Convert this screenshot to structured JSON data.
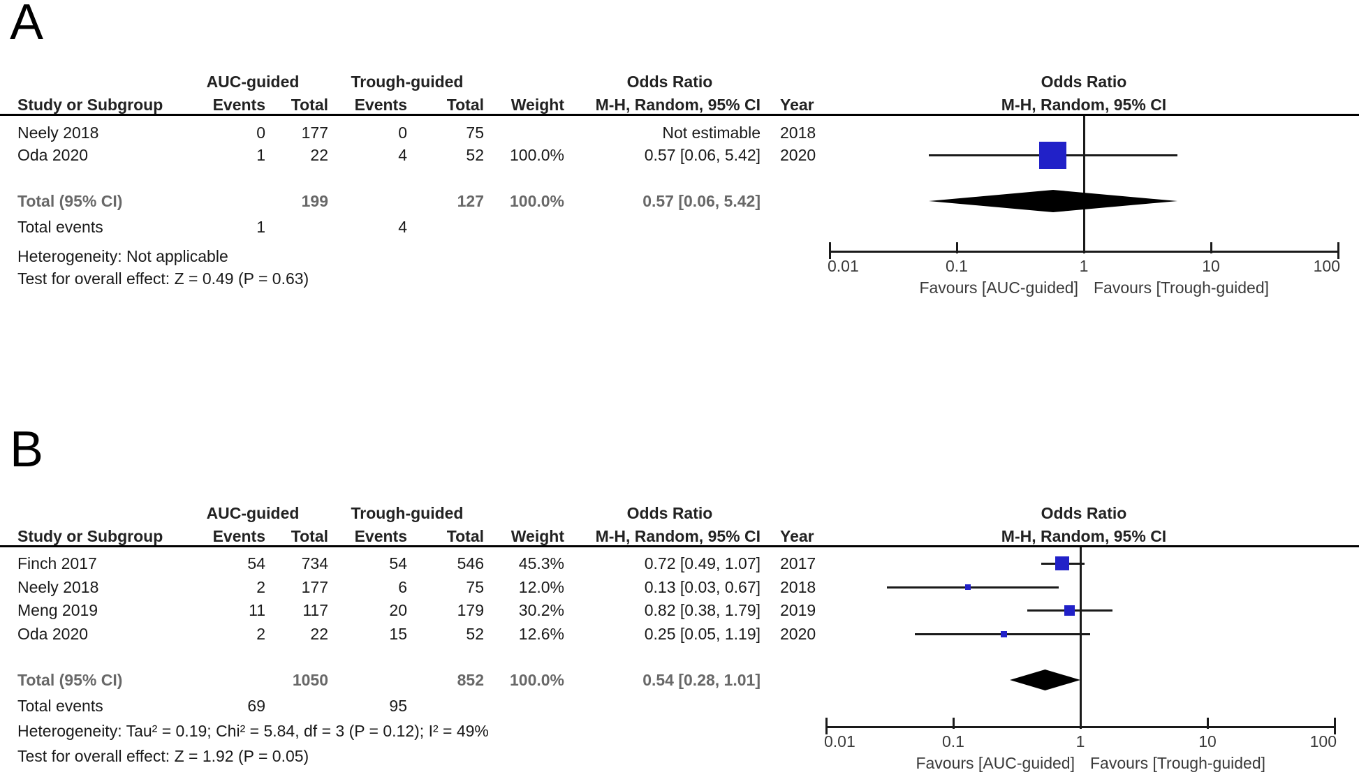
{
  "colors": {
    "square": "#2121C8",
    "diamond": "#000000",
    "line": "#1a1a1a",
    "text": "#1a1a1a",
    "total_row_text": "#686868",
    "axis_text": "#3a3a3a"
  },
  "panels": [
    {
      "label": "A",
      "group_headers": {
        "auc": "AUC-guided",
        "trough": "Trough-guided",
        "odds_ratio": "Odds Ratio",
        "odds_ratio_plot": "Odds Ratio"
      },
      "columns": {
        "study": "Study or Subgroup",
        "events_auc": "Events",
        "total_auc": "Total",
        "events_trough": "Events",
        "total_trough": "Total",
        "weight": "Weight",
        "mh": "M-H, Random, 95% CI",
        "year": "Year",
        "mh_plot": "M-H, Random, 95% CI"
      },
      "rows": [
        {
          "study": "Neely 2018",
          "events_auc": "0",
          "total_auc": "177",
          "events_trough": "0",
          "total_trough": "75",
          "weight": "",
          "or_ci": "Not estimable",
          "year": "2018"
        },
        {
          "study": "Oda 2020",
          "events_auc": "1",
          "total_auc": "22",
          "events_trough": "4",
          "total_trough": "52",
          "weight": "100.0%",
          "or_ci": "0.57 [0.06, 5.42]",
          "year": "2020"
        }
      ],
      "total_row": {
        "label": "Total (95% CI)",
        "total_auc": "199",
        "total_trough": "127",
        "weight": "100.0%",
        "or_ci": "0.57 [0.06, 5.42]"
      },
      "total_events": {
        "label": "Total events",
        "events_auc": "1",
        "events_trough": "4"
      },
      "heterogeneity": "Heterogeneity: Not applicable",
      "overall_effect": "Test for overall effect: Z = 0.49 (P = 0.63)",
      "plot": {
        "favours_left": "Favours [AUC-guided]",
        "favours_right": "Favours [Trough-guided]"
      }
    },
    {
      "label": "B",
      "group_headers": {
        "auc": "AUC-guided",
        "trough": "Trough-guided",
        "odds_ratio": "Odds Ratio",
        "odds_ratio_plot": "Odds Ratio"
      },
      "columns": {
        "study": "Study or Subgroup",
        "events_auc": "Events",
        "total_auc": "Total",
        "events_trough": "Events",
        "total_trough": "Total",
        "weight": "Weight",
        "mh": "M-H, Random, 95% CI",
        "year": "Year",
        "mh_plot": "M-H, Random, 95% CI"
      },
      "rows": [
        {
          "study": "Finch 2017",
          "events_auc": "54",
          "total_auc": "734",
          "events_trough": "54",
          "total_trough": "546",
          "weight": "45.3%",
          "or_ci": "0.72 [0.49, 1.07]",
          "year": "2017"
        },
        {
          "study": "Neely 2018",
          "events_auc": "2",
          "total_auc": "177",
          "events_trough": "6",
          "total_trough": "75",
          "weight": "12.0%",
          "or_ci": "0.13 [0.03, 0.67]",
          "year": "2018"
        },
        {
          "study": "Meng 2019",
          "events_auc": "11",
          "total_auc": "117",
          "events_trough": "20",
          "total_trough": "179",
          "weight": "30.2%",
          "or_ci": "0.82 [0.38, 1.79]",
          "year": "2019"
        },
        {
          "study": "Oda 2020",
          "events_auc": "2",
          "total_auc": "22",
          "events_trough": "15",
          "total_trough": "52",
          "weight": "12.6%",
          "or_ci": "0.25 [0.05, 1.19]",
          "year": "2020"
        }
      ],
      "total_row": {
        "label": "Total (95% CI)",
        "total_auc": "1050",
        "total_trough": "852",
        "weight": "100.0%",
        "or_ci": "0.54 [0.28, 1.01]"
      },
      "total_events": {
        "label": "Total events",
        "events_auc": "69",
        "events_trough": "95"
      },
      "heterogeneity": "Heterogeneity: Tau² = 0.19; Chi² = 5.84, df = 3 (P = 0.12); I² = 49%",
      "overall_effect": "Test for overall effect: Z = 1.92 (P = 0.05)",
      "plot": {
        "favours_left": "Favours [AUC-guided]",
        "favours_right": "Favours [Trough-guided]"
      }
    }
  ],
  "chart_data": [
    {
      "type": "forest",
      "panel": "A",
      "effect_measure": "Odds Ratio, M-H, Random, 95% CI",
      "x_scale": "log10",
      "xlim": [
        0.01,
        100
      ],
      "x_ticks": [
        0.01,
        0.1,
        1,
        10,
        100
      ],
      "x_tick_labels": [
        "0.01",
        "0.1",
        "1",
        "10",
        "100"
      ],
      "favours_left": "Favours [AUC-guided]",
      "favours_right": "Favours [Trough-guided]",
      "studies": [
        {
          "name": "Neely 2018",
          "year": 2018,
          "events_auc": 0,
          "total_auc": 177,
          "events_trough": 0,
          "total_trough": 75,
          "weight_pct": null,
          "or": null,
          "ci_low": null,
          "ci_high": null,
          "note": "Not estimable"
        },
        {
          "name": "Oda 2020",
          "year": 2020,
          "events_auc": 1,
          "total_auc": 22,
          "events_trough": 4,
          "total_trough": 52,
          "weight_pct": 100.0,
          "or": 0.57,
          "ci_low": 0.06,
          "ci_high": 5.42
        }
      ],
      "total": {
        "total_auc": 199,
        "total_trough": 127,
        "events_auc": 1,
        "events_trough": 4,
        "weight_pct": 100.0,
        "or": 0.57,
        "ci_low": 0.06,
        "ci_high": 5.42
      },
      "heterogeneity": "Not applicable",
      "overall_effect": "Z = 0.49 (P = 0.63)"
    },
    {
      "type": "forest",
      "panel": "B",
      "effect_measure": "Odds Ratio, M-H, Random, 95% CI",
      "x_scale": "log10",
      "xlim": [
        0.01,
        100
      ],
      "x_ticks": [
        0.01,
        0.1,
        1,
        10,
        100
      ],
      "x_tick_labels": [
        "0.01",
        "0.1",
        "1",
        "10",
        "100"
      ],
      "favours_left": "Favours [AUC-guided]",
      "favours_right": "Favours [Trough-guided]",
      "studies": [
        {
          "name": "Finch 2017",
          "year": 2017,
          "events_auc": 54,
          "total_auc": 734,
          "events_trough": 54,
          "total_trough": 546,
          "weight_pct": 45.3,
          "or": 0.72,
          "ci_low": 0.49,
          "ci_high": 1.07
        },
        {
          "name": "Neely 2018",
          "year": 2018,
          "events_auc": 2,
          "total_auc": 177,
          "events_trough": 6,
          "total_trough": 75,
          "weight_pct": 12.0,
          "or": 0.13,
          "ci_low": 0.03,
          "ci_high": 0.67
        },
        {
          "name": "Meng 2019",
          "year": 2019,
          "events_auc": 11,
          "total_auc": 117,
          "events_trough": 20,
          "total_trough": 179,
          "weight_pct": 30.2,
          "or": 0.82,
          "ci_low": 0.38,
          "ci_high": 1.79
        },
        {
          "name": "Oda 2020",
          "year": 2020,
          "events_auc": 2,
          "total_auc": 22,
          "events_trough": 15,
          "total_trough": 52,
          "weight_pct": 12.6,
          "or": 0.25,
          "ci_low": 0.05,
          "ci_high": 1.19
        }
      ],
      "total": {
        "total_auc": 1050,
        "total_trough": 852,
        "events_auc": 69,
        "events_trough": 95,
        "weight_pct": 100.0,
        "or": 0.54,
        "ci_low": 0.28,
        "ci_high": 1.01
      },
      "heterogeneity": "Tau² = 0.19; Chi² = 5.84, df = 3 (P = 0.12); I² = 49%",
      "overall_effect": "Z = 1.92 (P = 0.05)"
    }
  ]
}
